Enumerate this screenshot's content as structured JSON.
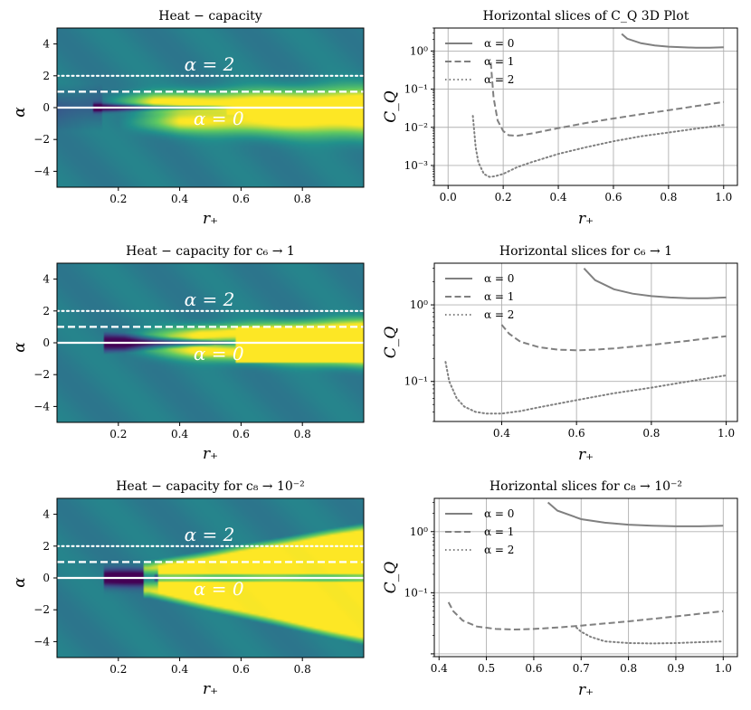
{
  "chart_data": [
    {
      "type": "heatmap",
      "title": "Heat − capacity",
      "xlabel": "r₊",
      "ylabel": "α",
      "xlim": [
        0.0,
        1.0
      ],
      "ylim": [
        -5,
        5
      ],
      "xticks": [
        "0.2",
        "0.4",
        "0.6",
        "0.8"
      ],
      "yticks": [
        "4",
        "2",
        "0",
        "−2",
        "−4"
      ],
      "annotations": [
        "α = 2",
        "α = 0"
      ],
      "colormap": [
        "#440154",
        "#3b528b",
        "#21918c",
        "#5ec962",
        "#fde725"
      ],
      "lines": [
        {
          "alpha": 2,
          "style": "dotted"
        },
        {
          "alpha": 1,
          "style": "dashed"
        },
        {
          "alpha": 0,
          "style": "solid"
        }
      ],
      "variant": 0
    },
    {
      "type": "line",
      "title": "Horizontal slices of C_Q 3D Plot",
      "xlabel": "r₊",
      "ylabel": "C_Q",
      "yscale": "log",
      "xlim": [
        -0.05,
        1.05
      ],
      "ylim": [
        0.0003,
        4
      ],
      "xticks": [
        "0.0",
        "0.2",
        "0.4",
        "0.6",
        "0.8",
        "1.0"
      ],
      "yticks": [
        "10⁰",
        "10⁻¹",
        "10⁻²",
        "10⁻³"
      ],
      "grid": true,
      "legend_position": "top-left",
      "color": "#808080",
      "series": [
        {
          "name": "α = 0",
          "style": "solid",
          "x": [
            0.63,
            0.65,
            0.7,
            0.75,
            0.8,
            0.85,
            0.9,
            0.95,
            1.0
          ],
          "y": [
            2.8,
            2.1,
            1.6,
            1.4,
            1.3,
            1.25,
            1.22,
            1.22,
            1.25
          ]
        },
        {
          "name": "α = 1",
          "style": "dashed",
          "x": [
            0.155,
            0.165,
            0.18,
            0.2,
            0.22,
            0.25,
            0.3,
            0.4,
            0.5,
            0.6,
            0.7,
            0.8,
            0.9,
            1.0
          ],
          "y": [
            0.5,
            0.06,
            0.015,
            0.008,
            0.0062,
            0.006,
            0.0068,
            0.0095,
            0.013,
            0.017,
            0.022,
            0.028,
            0.036,
            0.046
          ]
        },
        {
          "name": "α = 2",
          "style": "dotted",
          "x": [
            0.09,
            0.1,
            0.11,
            0.13,
            0.15,
            0.17,
            0.2,
            0.25,
            0.3,
            0.4,
            0.5,
            0.6,
            0.7,
            0.8,
            0.9,
            1.0
          ],
          "y": [
            0.02,
            0.003,
            0.0012,
            0.0006,
            0.0005,
            0.00052,
            0.0006,
            0.0009,
            0.0012,
            0.002,
            0.003,
            0.0043,
            0.0058,
            0.0073,
            0.0092,
            0.0115
          ]
        }
      ]
    },
    {
      "type": "heatmap",
      "title": "Heat − capacity  for  c₆ → 1",
      "xlabel": "r₊",
      "ylabel": "α",
      "xlim": [
        0.0,
        1.0
      ],
      "ylim": [
        -5,
        5
      ],
      "xticks": [
        "0.2",
        "0.4",
        "0.6",
        "0.8"
      ],
      "yticks": [
        "4",
        "2",
        "0",
        "−2",
        "−4"
      ],
      "annotations": [
        "α = 2",
        "α = 0"
      ],
      "colormap": [
        "#440154",
        "#3b528b",
        "#21918c",
        "#5ec962",
        "#fde725"
      ],
      "lines": [
        {
          "alpha": 2,
          "style": "dotted"
        },
        {
          "alpha": 1,
          "style": "dashed"
        },
        {
          "alpha": 0,
          "style": "solid"
        }
      ],
      "variant": 1
    },
    {
      "type": "line",
      "title": "Horizontal slices  for  c₆ → 1",
      "xlabel": "r₊",
      "ylabel": "C_Q",
      "yscale": "log",
      "xlim": [
        0.22,
        1.03
      ],
      "ylim": [
        0.03,
        3.5
      ],
      "xticks": [
        "0.4",
        "0.6",
        "0.8",
        "1.0"
      ],
      "yticks": [
        "10⁰",
        "10⁻¹"
      ],
      "grid": true,
      "legend_position": "top-left",
      "color": "#808080",
      "series": [
        {
          "name": "α = 0",
          "style": "solid",
          "x": [
            0.62,
            0.65,
            0.7,
            0.75,
            0.8,
            0.85,
            0.9,
            0.95,
            1.0
          ],
          "y": [
            3.0,
            2.1,
            1.6,
            1.4,
            1.3,
            1.25,
            1.22,
            1.22,
            1.25
          ]
        },
        {
          "name": "α = 1",
          "style": "dashed",
          "x": [
            0.4,
            0.42,
            0.45,
            0.5,
            0.55,
            0.6,
            0.65,
            0.7,
            0.8,
            0.9,
            1.0
          ],
          "y": [
            0.55,
            0.42,
            0.33,
            0.28,
            0.26,
            0.255,
            0.26,
            0.27,
            0.3,
            0.34,
            0.39
          ]
        },
        {
          "name": "α = 2",
          "style": "dotted",
          "x": [
            0.25,
            0.26,
            0.28,
            0.3,
            0.33,
            0.36,
            0.4,
            0.45,
            0.5,
            0.6,
            0.7,
            0.8,
            0.9,
            1.0
          ],
          "y": [
            0.18,
            0.1,
            0.06,
            0.047,
            0.04,
            0.038,
            0.038,
            0.041,
            0.046,
            0.057,
            0.07,
            0.083,
            0.1,
            0.12
          ]
        }
      ]
    },
    {
      "type": "heatmap",
      "title": "Heat − capacity  for  c₈ → 10⁻²",
      "xlabel": "r₊",
      "ylabel": "α",
      "xlim": [
        0.0,
        1.0
      ],
      "ylim": [
        -5,
        5
      ],
      "xticks": [
        "0.2",
        "0.4",
        "0.6",
        "0.8"
      ],
      "yticks": [
        "4",
        "2",
        "0",
        "−2",
        "−4"
      ],
      "annotations": [
        "α = 2",
        "α = 0"
      ],
      "colormap": [
        "#440154",
        "#3b528b",
        "#21918c",
        "#5ec962",
        "#fde725"
      ],
      "lines": [
        {
          "alpha": 2,
          "style": "dotted"
        },
        {
          "alpha": 1,
          "style": "dashed"
        },
        {
          "alpha": 0,
          "style": "solid"
        }
      ],
      "variant": 2
    },
    {
      "type": "line",
      "title": "Horizontal slices  for  c₈ → 10⁻²",
      "xlabel": "r₊",
      "ylabel": "C_Q",
      "yscale": "log",
      "xlim": [
        0.39,
        1.03
      ],
      "ylim": [
        0.009,
        3.5
      ],
      "xticks": [
        "0.4",
        "0.5",
        "0.6",
        "0.7",
        "0.8",
        "0.9",
        "1.0"
      ],
      "yticks": [
        "10⁰",
        "10⁻¹"
      ],
      "grid": true,
      "legend_position": "top-left",
      "color": "#808080",
      "series": [
        {
          "name": "α = 0",
          "style": "solid",
          "x": [
            0.63,
            0.65,
            0.7,
            0.75,
            0.8,
            0.85,
            0.9,
            0.95,
            1.0
          ],
          "y": [
            3.0,
            2.2,
            1.6,
            1.4,
            1.3,
            1.25,
            1.22,
            1.22,
            1.25
          ]
        },
        {
          "name": "α = 1",
          "style": "dashed",
          "x": [
            0.42,
            0.43,
            0.45,
            0.48,
            0.52,
            0.56,
            0.6,
            0.65,
            0.7,
            0.8,
            0.9,
            1.0
          ],
          "y": [
            0.07,
            0.05,
            0.035,
            0.028,
            0.0255,
            0.025,
            0.0255,
            0.027,
            0.029,
            0.034,
            0.041,
            0.05
          ]
        },
        {
          "name": "α = 2",
          "style": "dotted",
          "x": [
            0.69,
            0.7,
            0.72,
            0.75,
            0.8,
            0.85,
            0.9,
            0.95,
            1.0
          ],
          "y": [
            0.027,
            0.023,
            0.019,
            0.016,
            0.015,
            0.0148,
            0.015,
            0.0155,
            0.016
          ]
        }
      ]
    }
  ]
}
